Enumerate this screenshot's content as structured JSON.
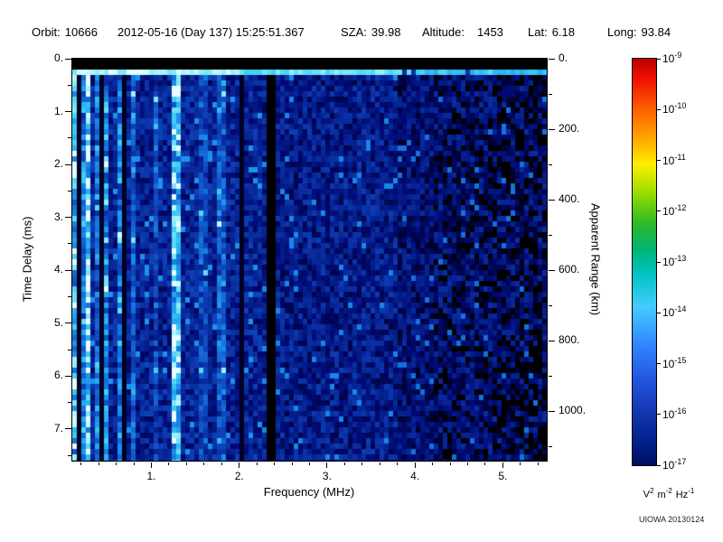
{
  "header": {
    "orbit_label": "Orbit:",
    "orbit_value": "10666",
    "datetime": "2012-05-16 (Day 137) 15:25:51.367",
    "sza_label": "SZA:",
    "sza_value": "39.98",
    "altitude_label": "Altitude:",
    "altitude_value": "1453",
    "lat_label": "Lat:",
    "lat_value": "6.18",
    "long_label": "Long:",
    "long_value": "93.84"
  },
  "footer": {
    "credit": "UIOWA 20130124"
  },
  "chart_data": {
    "type": "heatmap",
    "description": "Radar sounder ionogram spectrogram: spectral density versus frequency and time delay. Noisy dark-blue field with bright cyan vertical bands below 2 MHz, a solid black vertical gap near 2.35 MHz, a black band at the top followed by a bright horizontal line near 0.25 ms, and black dropout patches above about 4.2 MHz.",
    "xlabel": "Frequency (MHz)",
    "ylabel_left": "Time Delay (ms)",
    "ylabel_right": "Apparent Range (km)",
    "x_range_mhz": [
      0.1,
      5.5
    ],
    "y_range_ms": [
      0.0,
      7.6
    ],
    "right_axis_range_km": [
      0,
      1140
    ],
    "x_tick_values": [
      1,
      2,
      3,
      4,
      5
    ],
    "x_tick_labels": [
      "1.",
      "2.",
      "3.",
      "4.",
      "5."
    ],
    "y_tick_values_left": [
      0,
      1,
      2,
      3,
      4,
      5,
      6,
      7
    ],
    "y_tick_labels_left": [
      "0.",
      "1.",
      "2.",
      "3.",
      "4.",
      "5.",
      "6.",
      "7."
    ],
    "y_tick_values_right": [
      0,
      200,
      400,
      600,
      800,
      1000
    ],
    "y_tick_labels_right": [
      "0.",
      "200.",
      "400.",
      "600.",
      "800.",
      "1000."
    ],
    "colorbar": {
      "scale": "log10",
      "label_base": "10",
      "exponents": [
        -9,
        -10,
        -11,
        -12,
        -13,
        -14,
        -15,
        -16,
        -17
      ],
      "units_v": "V",
      "units_v_exp": "2",
      "units_m": "m",
      "units_m_exp": "-2",
      "units_hz": "Hz",
      "units_hz_exp": "-1",
      "gradient": [
        {
          "color": "#bb0000",
          "pos": 0
        },
        {
          "color": "#ee1100",
          "pos": 5
        },
        {
          "color": "#ff6600",
          "pos": 13
        },
        {
          "color": "#ffaa00",
          "pos": 20
        },
        {
          "color": "#ffee00",
          "pos": 26
        },
        {
          "color": "#99dd00",
          "pos": 33
        },
        {
          "color": "#33bb22",
          "pos": 40
        },
        {
          "color": "#00b377",
          "pos": 47
        },
        {
          "color": "#00c4c4",
          "pos": 53
        },
        {
          "color": "#44ccff",
          "pos": 61
        },
        {
          "color": "#3388ff",
          "pos": 70
        },
        {
          "color": "#2255dd",
          "pos": 79
        },
        {
          "color": "#1133aa",
          "pos": 88
        },
        {
          "color": "#001f88",
          "pos": 95
        },
        {
          "color": "#000f5e",
          "pos": 100
        }
      ]
    },
    "colormap": [
      {
        "v": 0.0,
        "c": [
          0,
          0,
          16
        ]
      },
      {
        "v": 0.06,
        "c": [
          0,
          0,
          40
        ]
      },
      {
        "v": 0.2,
        "c": [
          0,
          10,
          115
        ]
      },
      {
        "v": 0.45,
        "c": [
          15,
          70,
          190
        ]
      },
      {
        "v": 0.65,
        "c": [
          25,
          140,
          235
        ]
      },
      {
        "v": 0.8,
        "c": [
          60,
          205,
          245
        ]
      },
      {
        "v": 0.92,
        "c": [
          150,
          240,
          250
        ]
      },
      {
        "v": 1.0,
        "c": [
          230,
          255,
          255
        ]
      }
    ],
    "features": {
      "top_black_band_ms": [
        0,
        0.18
      ],
      "surface_line_end_ms": 0.34,
      "black_band_mhz": [
        2.33,
        2.42
      ],
      "dark_lines_mhz": [
        0.185,
        0.44,
        0.7,
        2.05
      ],
      "dark_right_start_mhz": 4.2,
      "bright_columns": [
        {
          "f": 0.14,
          "s": 0.5,
          "w": 0.03
        },
        {
          "f": 0.22,
          "s": 0.3,
          "w": 0.022
        },
        {
          "f": 0.3,
          "s": 0.55,
          "w": 0.028
        },
        {
          "f": 0.4,
          "s": 0.28,
          "w": 0.022
        },
        {
          "f": 0.5,
          "s": 0.33,
          "w": 0.026
        },
        {
          "f": 0.62,
          "s": 0.3,
          "w": 0.026
        },
        {
          "f": 0.8,
          "s": 0.24,
          "w": 0.04
        },
        {
          "f": 1.05,
          "s": 0.16,
          "w": 0.045
        },
        {
          "f": 1.3,
          "s": 0.5,
          "w": 0.045
        },
        {
          "f": 1.6,
          "s": 0.15,
          "w": 0.045
        },
        {
          "f": 1.78,
          "s": 0.22,
          "w": 0.045
        }
      ]
    }
  }
}
